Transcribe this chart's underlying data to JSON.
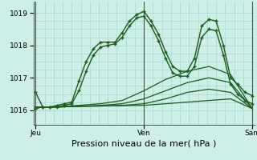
{
  "bg_color": "#ceeee8",
  "grid_color": "#aad4cc",
  "line_color": "#1a5c1a",
  "xlabel": "Pression niveau de la mer( hPa )",
  "xlabel_fontsize": 8,
  "yticks": [
    1016,
    1017,
    1018,
    1019
  ],
  "ylim": [
    1015.55,
    1019.35
  ],
  "xlim": [
    -0.01,
    1.01
  ],
  "xtick_labels": [
    "Jeu",
    "Ven",
    "Sam"
  ],
  "xtick_positions": [
    0.0,
    0.5,
    1.0
  ],
  "vline_color": "#446644",
  "series": [
    {
      "x": [
        0.0,
        0.033,
        0.067,
        0.1,
        0.133,
        0.167,
        0.2,
        0.233,
        0.267,
        0.3,
        0.333,
        0.367,
        0.4,
        0.433,
        0.467,
        0.5,
        0.533,
        0.567,
        0.6,
        0.633,
        0.667,
        0.7,
        0.733,
        0.767,
        0.8,
        0.833,
        0.867,
        0.9,
        0.933,
        0.967,
        1.0
      ],
      "y": [
        1016.55,
        1016.1,
        1016.1,
        1016.15,
        1016.2,
        1016.25,
        1016.9,
        1017.5,
        1017.9,
        1018.1,
        1018.1,
        1018.1,
        1018.4,
        1018.75,
        1018.95,
        1019.05,
        1018.75,
        1018.35,
        1017.8,
        1017.35,
        1017.2,
        1017.2,
        1017.6,
        1018.6,
        1018.8,
        1018.75,
        1018.0,
        1017.0,
        1016.8,
        1016.55,
        1016.45
      ],
      "marker": "+",
      "markersize": 3.5,
      "linewidth": 1.0
    },
    {
      "x": [
        0.0,
        0.033,
        0.067,
        0.1,
        0.133,
        0.167,
        0.2,
        0.233,
        0.267,
        0.3,
        0.333,
        0.367,
        0.4,
        0.433,
        0.467,
        0.5,
        0.533,
        0.567,
        0.6,
        0.633,
        0.667,
        0.7,
        0.733,
        0.767,
        0.8,
        0.833,
        0.867,
        0.9,
        0.933,
        0.967,
        1.0
      ],
      "y": [
        1016.05,
        1016.1,
        1016.1,
        1016.1,
        1016.15,
        1016.2,
        1016.6,
        1017.2,
        1017.7,
        1017.95,
        1018.0,
        1018.05,
        1018.25,
        1018.6,
        1018.85,
        1018.9,
        1018.6,
        1018.15,
        1017.6,
        1017.15,
        1017.05,
        1017.05,
        1017.35,
        1018.25,
        1018.5,
        1018.45,
        1017.7,
        1016.8,
        1016.5,
        1016.3,
        1016.2
      ],
      "marker": "+",
      "markersize": 3.5,
      "linewidth": 1.0
    },
    {
      "x": [
        0.0,
        0.1,
        0.2,
        0.3,
        0.4,
        0.5,
        0.6,
        0.7,
        0.8,
        0.9,
        1.0
      ],
      "y": [
        1016.1,
        1016.1,
        1016.12,
        1016.13,
        1016.14,
        1016.15,
        1016.2,
        1016.25,
        1016.3,
        1016.35,
        1016.05
      ],
      "marker": null,
      "markersize": 0,
      "linewidth": 0.9
    },
    {
      "x": [
        0.0,
        0.1,
        0.2,
        0.3,
        0.4,
        0.5,
        0.6,
        0.7,
        0.8,
        0.9,
        1.0
      ],
      "y": [
        1016.1,
        1016.1,
        1016.12,
        1016.13,
        1016.15,
        1016.2,
        1016.35,
        1016.55,
        1016.65,
        1016.55,
        1016.05
      ],
      "marker": null,
      "markersize": 0,
      "linewidth": 0.9
    },
    {
      "x": [
        0.0,
        0.1,
        0.2,
        0.3,
        0.4,
        0.5,
        0.6,
        0.7,
        0.8,
        0.9,
        1.0
      ],
      "y": [
        1016.1,
        1016.1,
        1016.12,
        1016.15,
        1016.2,
        1016.35,
        1016.6,
        1016.85,
        1017.0,
        1016.85,
        1016.05
      ],
      "marker": null,
      "markersize": 0,
      "linewidth": 0.9
    },
    {
      "x": [
        0.0,
        0.1,
        0.2,
        0.3,
        0.4,
        0.5,
        0.6,
        0.7,
        0.8,
        0.9,
        1.0
      ],
      "y": [
        1016.1,
        1016.1,
        1016.15,
        1016.2,
        1016.3,
        1016.6,
        1016.95,
        1017.2,
        1017.35,
        1017.1,
        1016.05
      ],
      "marker": null,
      "markersize": 0,
      "linewidth": 0.9
    }
  ]
}
